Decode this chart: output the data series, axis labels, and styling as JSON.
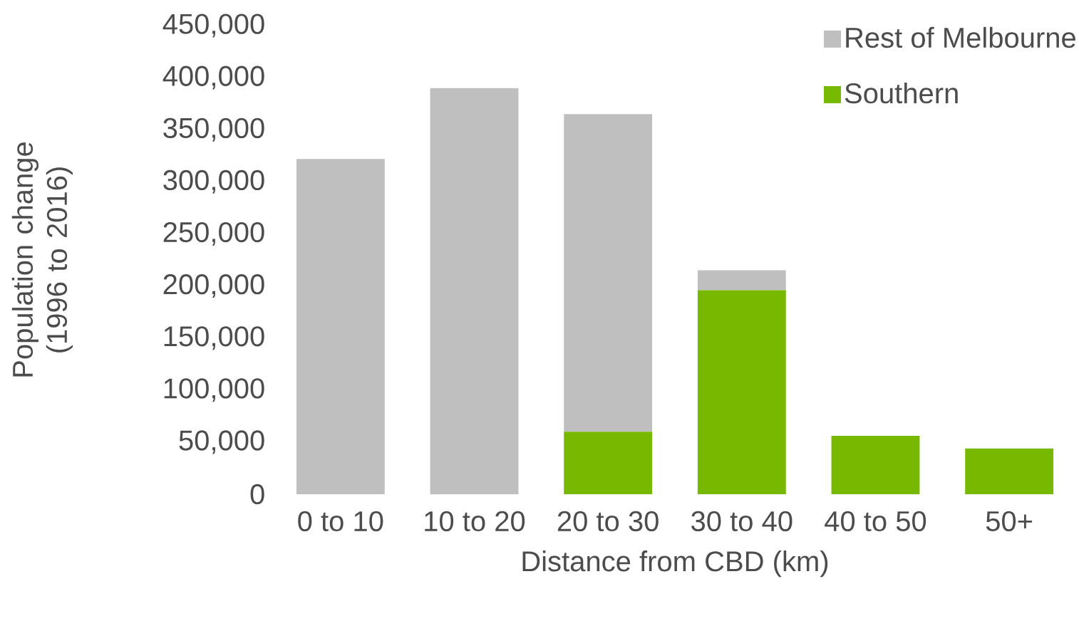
{
  "chart_data": {
    "type": "bar",
    "stacked": true,
    "xlabel": "Distance from CBD (km)",
    "ylabel": "Population change (1996 to 2016)",
    "categories": [
      "0 to 10",
      "10 to 20",
      "20 to 30",
      "30 to 40",
      "40 to 50",
      "50+"
    ],
    "series": [
      {
        "name": "Southern",
        "color": "#76b900",
        "values": [
          null,
          null,
          60000,
          196000,
          56000,
          44000
        ]
      },
      {
        "name": "Rest of Melbourne",
        "color": "#bfbfbf",
        "values": [
          322000,
          390000,
          305000,
          19000,
          null,
          null
        ]
      }
    ],
    "ylim": [
      0,
      450000
    ],
    "yticks": [
      {
        "value": 0,
        "label": "0"
      },
      {
        "value": 50000,
        "label": "50,000"
      },
      {
        "value": 100000,
        "label": "100,000"
      },
      {
        "value": 150000,
        "label": "150,000"
      },
      {
        "value": 200000,
        "label": "200,000"
      },
      {
        "value": 250000,
        "label": "250,000"
      },
      {
        "value": 300000,
        "label": "300,000"
      },
      {
        "value": 350000,
        "label": "350,000"
      },
      {
        "value": 400000,
        "label": "400,000"
      },
      {
        "value": 450000,
        "label": "450,000"
      }
    ],
    "grid": false,
    "legend": "top right"
  }
}
